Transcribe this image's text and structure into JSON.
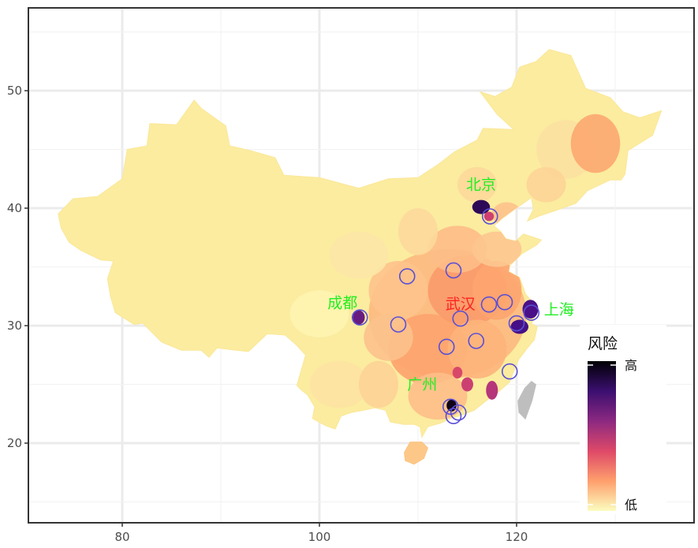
{
  "map": {
    "type": "choropleth",
    "region": "China",
    "x_axis": {
      "ticks": [
        "80",
        "100",
        "120"
      ],
      "range": [
        70,
        139
      ]
    },
    "y_axis": {
      "ticks": [
        "20",
        "30",
        "40",
        "50"
      ],
      "range": [
        13,
        56
      ]
    }
  },
  "cities": [
    {
      "name": "北京",
      "lon": 116.4,
      "lat": 40.1,
      "color": "#22ee22",
      "risk": "high"
    },
    {
      "name": "上海",
      "lon": 121.5,
      "lat": 31.2,
      "color": "#22ee22",
      "risk": "high"
    },
    {
      "name": "成都",
      "lon": 104.1,
      "lat": 30.7,
      "color": "#22ee22",
      "risk": "medium"
    },
    {
      "name": "广州",
      "lon": 113.3,
      "lat": 23.1,
      "color": "#22ee22",
      "risk": "high"
    },
    {
      "name": "武汉",
      "lon": 114.3,
      "lat": 30.6,
      "color": "#ff2020",
      "risk": "medium"
    }
  ],
  "highlight_circles": [
    {
      "lon": 117.3,
      "lat": 39.3
    },
    {
      "lon": 113.6,
      "lat": 34.7
    },
    {
      "lon": 108.9,
      "lat": 34.2
    },
    {
      "lon": 117.2,
      "lat": 31.8
    },
    {
      "lon": 118.8,
      "lat": 32.0
    },
    {
      "lon": 121.5,
      "lat": 31.1
    },
    {
      "lon": 120.0,
      "lat": 30.2
    },
    {
      "lon": 114.3,
      "lat": 30.6
    },
    {
      "lon": 104.1,
      "lat": 30.7
    },
    {
      "lon": 108.0,
      "lat": 30.1
    },
    {
      "lon": 112.9,
      "lat": 28.2
    },
    {
      "lon": 115.9,
      "lat": 28.7
    },
    {
      "lon": 119.3,
      "lat": 26.1
    },
    {
      "lon": 113.3,
      "lat": 23.1
    },
    {
      "lon": 114.1,
      "lat": 22.6
    },
    {
      "lon": 113.6,
      "lat": 22.3
    }
  ],
  "legend": {
    "title": "风险",
    "high_label": "高",
    "low_label": "低",
    "colors": [
      "#000004",
      "#3b0f70",
      "#8c2981",
      "#de4968",
      "#fe9f6d",
      "#fcfdbf"
    ]
  },
  "colors": {
    "circle_stroke": "#5a4fd6",
    "taiwan": "#bebebe",
    "grid": "#ebebeb",
    "panel_border": "#333333"
  }
}
